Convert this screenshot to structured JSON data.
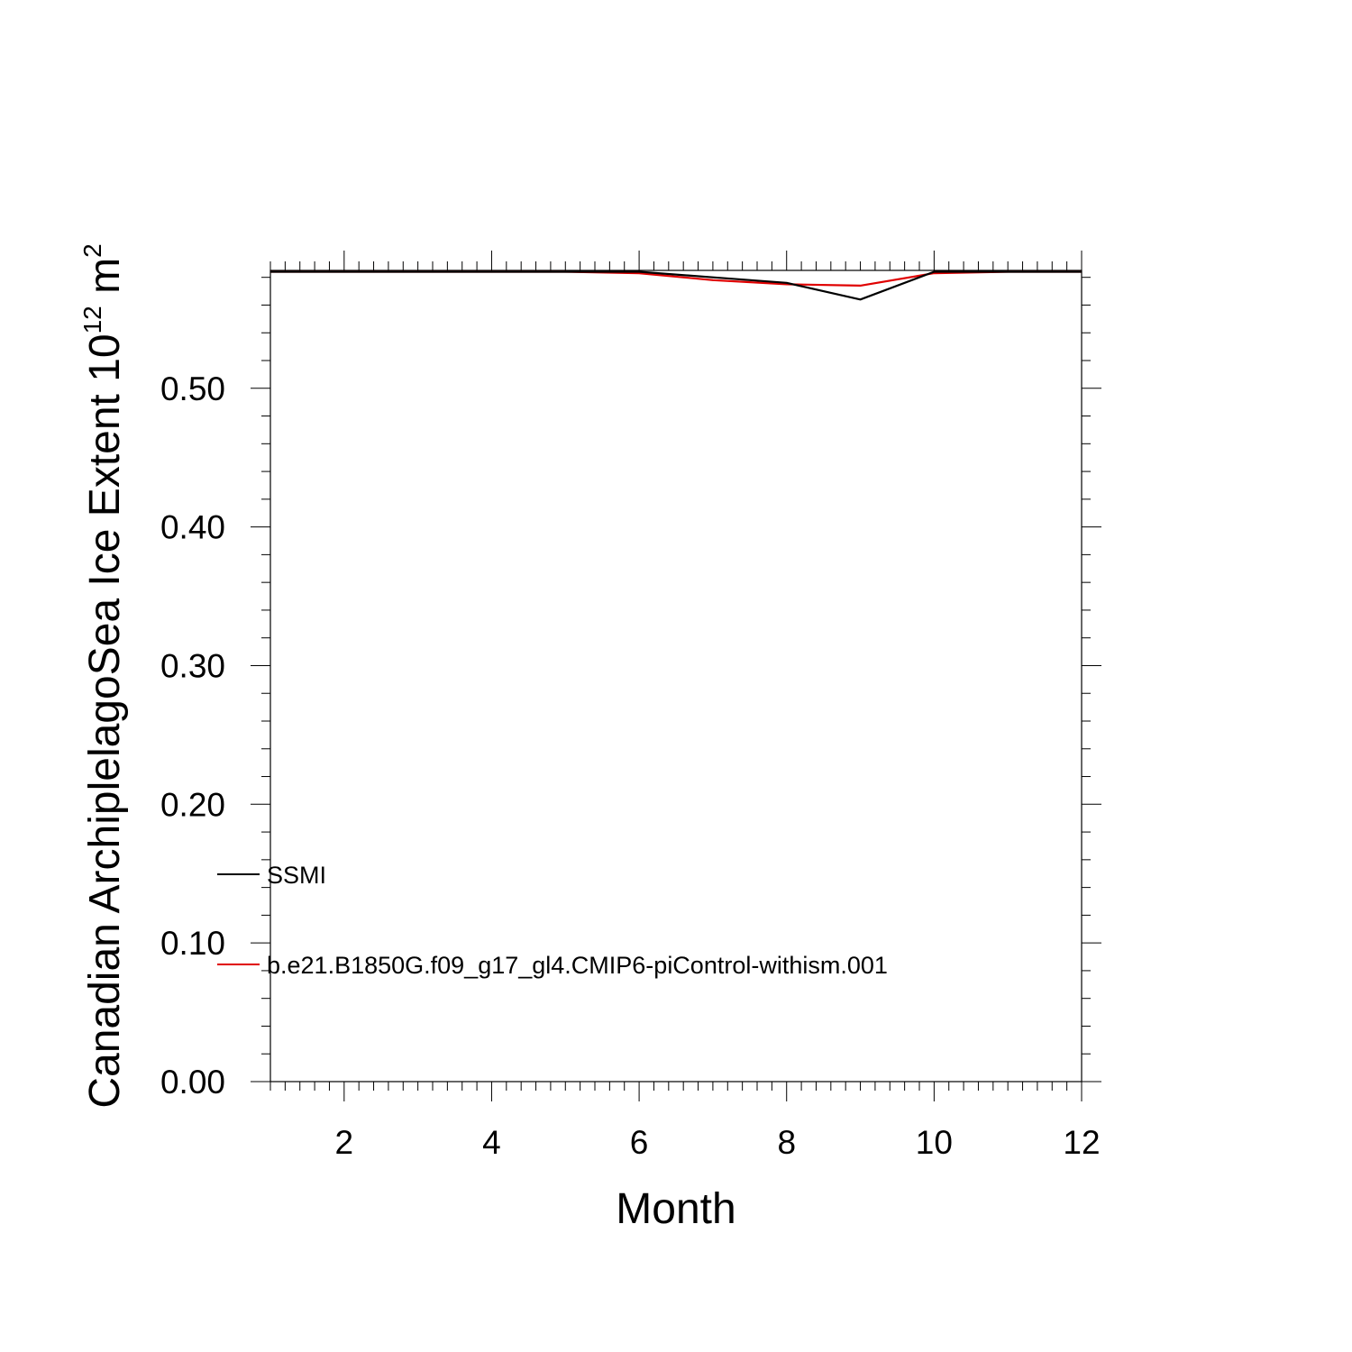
{
  "chart_data": {
    "type": "line",
    "title": "",
    "xlabel": "Month",
    "ylabel": {
      "text": "Canadian ArchiplelagoSea Ice Extent 10",
      "superscript": "12",
      "unit": " m",
      "unit_superscript": "2"
    },
    "xlim": [
      1,
      12
    ],
    "ylim": [
      0,
      0.585
    ],
    "x_ticks": [
      2,
      4,
      6,
      8,
      10,
      12
    ],
    "x_tick_labels": [
      "2",
      "4",
      "6",
      "8",
      "10",
      "12"
    ],
    "y_ticks": [
      0.0,
      0.1,
      0.2,
      0.3,
      0.4,
      0.5
    ],
    "y_tick_labels": [
      "0.00",
      "0.10",
      "0.20",
      "0.30",
      "0.40",
      "0.50"
    ],
    "grid": false,
    "legend_position": "lower-left",
    "x": [
      1,
      2,
      3,
      4,
      5,
      6,
      7,
      8,
      9,
      10,
      11,
      12
    ],
    "series": [
      {
        "name": "SSMI",
        "color": "#000000",
        "values": [
          0.584,
          0.584,
          0.584,
          0.584,
          0.584,
          0.584,
          0.58,
          0.576,
          0.564,
          0.584,
          0.584,
          0.584
        ]
      },
      {
        "name": "b.e21.B1850G.f09_g17_gl4.CMIP6-piControl-withism.001",
        "color": "#e00000",
        "values": [
          0.584,
          0.584,
          0.584,
          0.584,
          0.584,
          0.583,
          0.578,
          0.575,
          0.574,
          0.583,
          0.584,
          0.584
        ]
      }
    ]
  }
}
